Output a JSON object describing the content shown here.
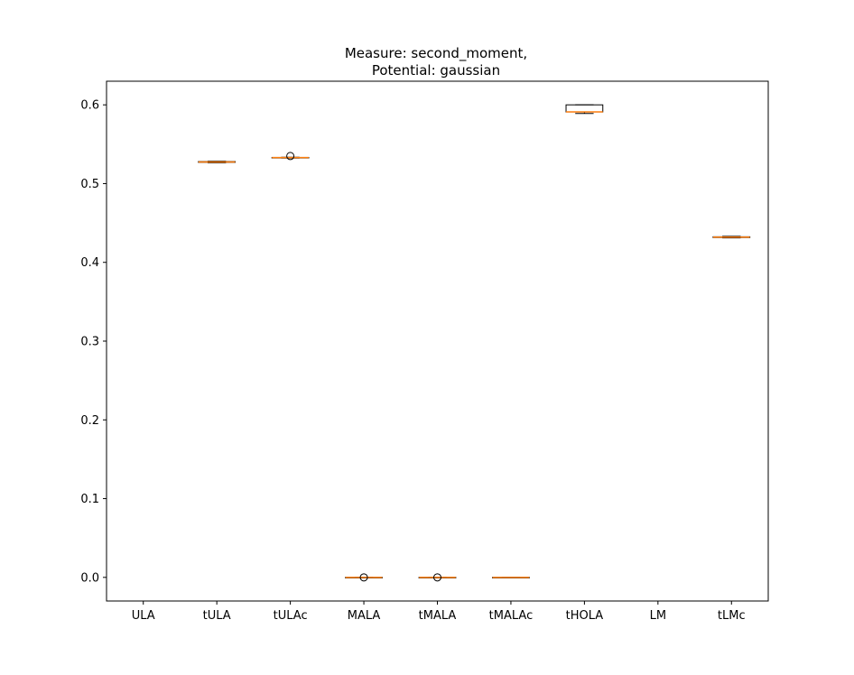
{
  "chart_data": {
    "type": "boxplot",
    "title_line1": "Measure: second_moment,",
    "title_line2": "Potential: gaussian",
    "xlabel": "",
    "ylabel": "",
    "ylim": [
      -0.03,
      0.63
    ],
    "yticks": [
      0.0,
      0.1,
      0.2,
      0.3,
      0.4,
      0.5,
      0.6
    ],
    "ytick_labels": [
      "0.0",
      "0.1",
      "0.2",
      "0.3",
      "0.4",
      "0.5",
      "0.6"
    ],
    "grid": false,
    "categories": [
      "ULA",
      "tULA",
      "tULAc",
      "MALA",
      "tMALA",
      "tMALAc",
      "tHOLA",
      "LM",
      "tLMc"
    ],
    "boxes": [
      null,
      {
        "whislo": 0.5265,
        "q1": 0.527,
        "med": 0.5275,
        "q3": 0.528,
        "whishi": 0.5285,
        "fliers": []
      },
      {
        "whislo": 0.5325,
        "q1": 0.5328,
        "med": 0.533,
        "q3": 0.5332,
        "whishi": 0.5335,
        "fliers": [
          0.535
        ]
      },
      {
        "whislo": 0.0,
        "q1": 0.0,
        "med": 0.0,
        "q3": 0.0,
        "whishi": 0.0,
        "fliers": [
          0.0
        ]
      },
      {
        "whislo": 0.0,
        "q1": 0.0,
        "med": 0.0,
        "q3": 0.0,
        "whishi": 0.0,
        "fliers": [
          0.0
        ]
      },
      {
        "whislo": 0.0,
        "q1": 0.0,
        "med": 0.0,
        "q3": 0.0,
        "whishi": 0.0,
        "fliers": []
      },
      {
        "whislo": 0.589,
        "q1": 0.591,
        "med": 0.591,
        "q3": 0.6,
        "whishi": 0.6,
        "fliers": []
      },
      null,
      {
        "whislo": 0.431,
        "q1": 0.4315,
        "med": 0.432,
        "q3": 0.4325,
        "whishi": 0.433,
        "fliers": []
      }
    ],
    "colors": {
      "box": "#000000",
      "median": "#ff7f0e",
      "flier": "#000000",
      "frame": "#000000"
    }
  }
}
